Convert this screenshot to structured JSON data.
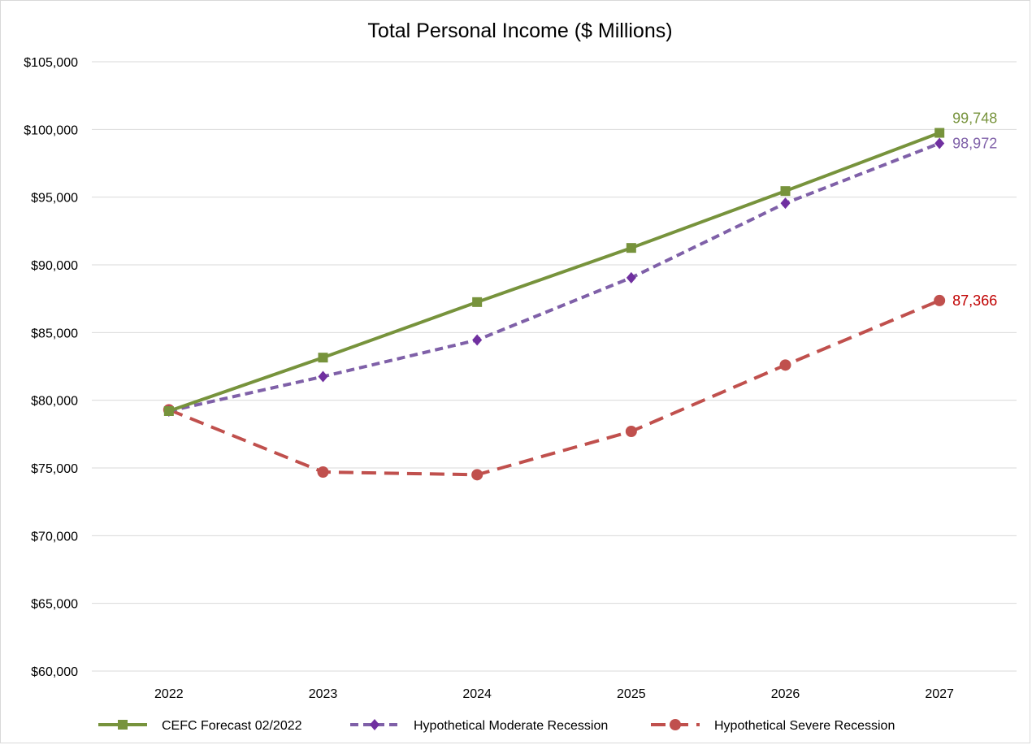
{
  "chart_data": {
    "type": "line",
    "title": "Total Personal Income ($ Millions)",
    "xlabel": "",
    "ylabel": "",
    "categories": [
      "2022",
      "2023",
      "2024",
      "2025",
      "2026",
      "2027"
    ],
    "ylim": [
      60000,
      105000
    ],
    "y_ticks": [
      60000,
      65000,
      70000,
      75000,
      80000,
      85000,
      90000,
      95000,
      100000,
      105000
    ],
    "y_tick_labels": [
      "$60,000",
      "$65,000",
      "$70,000",
      "$75,000",
      "$80,000",
      "$85,000",
      "$90,000",
      "$95,000",
      "$100,000",
      "$105,000"
    ],
    "grid": true,
    "legend_position": "bottom",
    "series": [
      {
        "name": "CEFC Forecast 02/2022",
        "values": [
          79200,
          83150,
          87250,
          91250,
          95450,
          99748
        ],
        "color": "#77933c",
        "line_style": "solid",
        "marker": "square",
        "end_label": "99,748"
      },
      {
        "name": "Hypothetical Moderate Recession",
        "values": [
          79200,
          81750,
          84450,
          89050,
          94550,
          98972
        ],
        "color": "#7f60a8",
        "marker_color": "#7030a0",
        "line_style": "dashed",
        "marker": "diamond",
        "end_label": "98,972"
      },
      {
        "name": "Hypothetical Severe Recession",
        "values": [
          79300,
          74700,
          74500,
          77700,
          82600,
          87366
        ],
        "color": "#c0504d",
        "end_label_color": "#c00000",
        "line_style": "dashed",
        "marker": "circle",
        "end_label": "87,366"
      }
    ]
  }
}
